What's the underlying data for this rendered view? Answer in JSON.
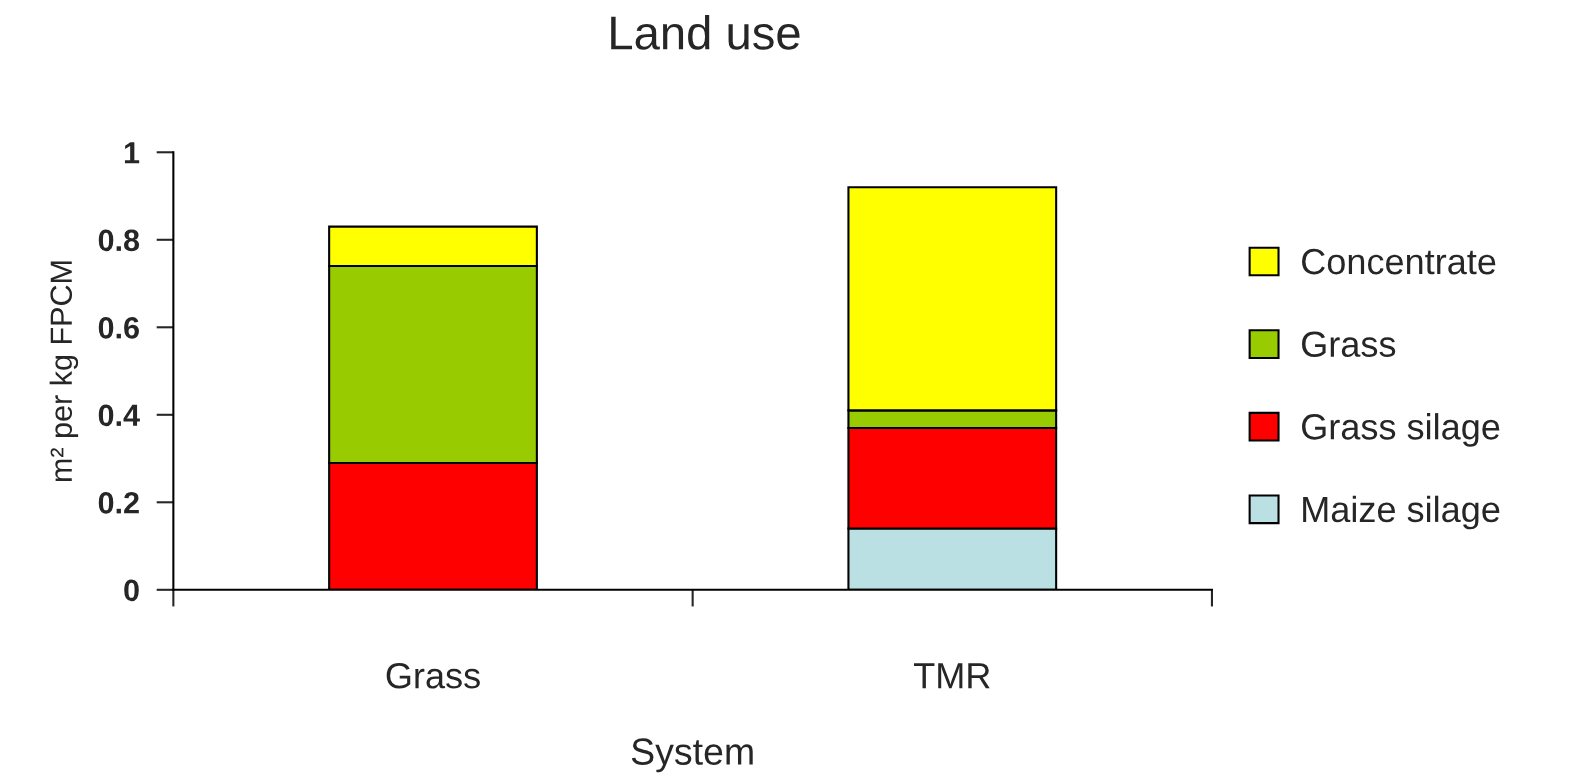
{
  "chart_data": {
    "type": "bar",
    "title": "Land use",
    "xlabel": "System",
    "ylabel": "m² per kg FPCM",
    "categories": [
      "Grass",
      "TMR"
    ],
    "stacked": true,
    "series": [
      {
        "name": "Maize silage",
        "color": "#bbe0e3",
        "values": [
          0,
          0.14
        ]
      },
      {
        "name": "Grass silage",
        "color": "#ff0000",
        "values": [
          0.29,
          0.23
        ]
      },
      {
        "name": "Grass",
        "color": "#99cc00",
        "values": [
          0.45,
          0.04
        ]
      },
      {
        "name": "Concentrate",
        "color": "#ffff00",
        "values": [
          0.09,
          0.51
        ]
      }
    ],
    "ylim": [
      0,
      1
    ],
    "yticks": [
      0,
      0.2,
      0.4,
      0.6,
      0.8,
      1
    ],
    "grid": false,
    "legend": "right"
  }
}
